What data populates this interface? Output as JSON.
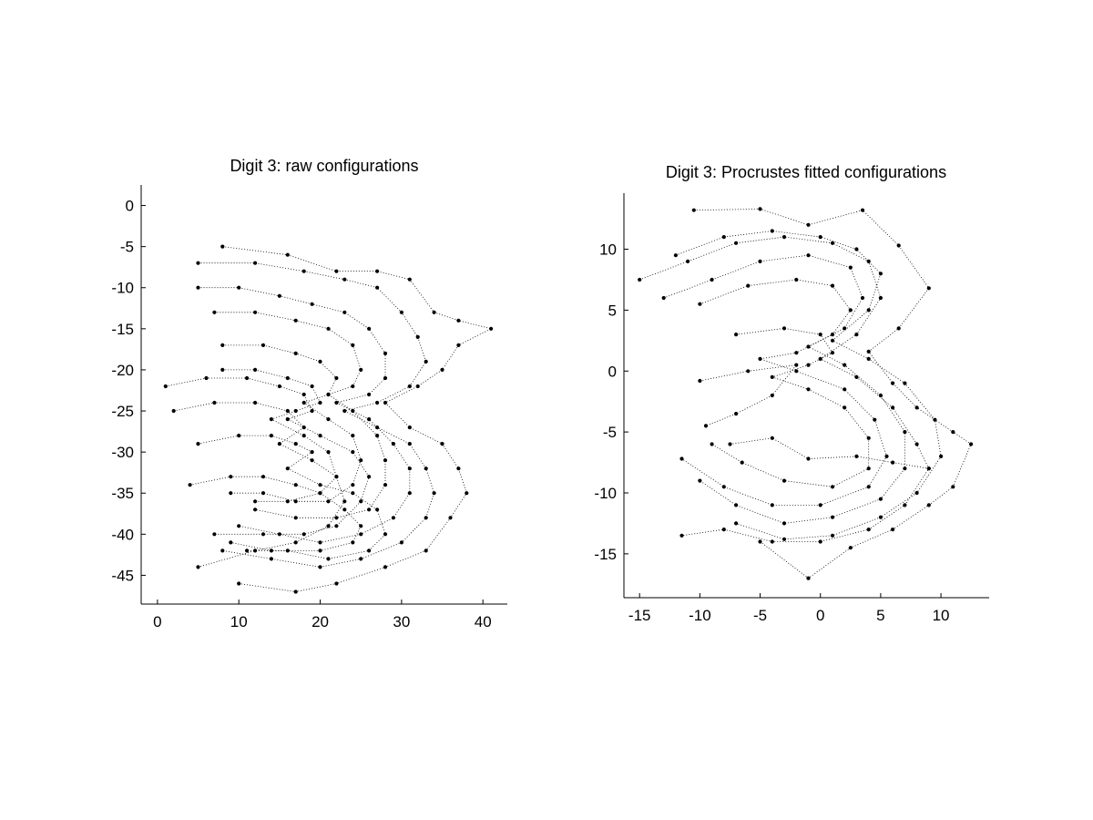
{
  "chart_data": [
    {
      "type": "scatter",
      "title": "Digit 3: raw configurations",
      "xlabel": "",
      "ylabel": "",
      "xlim": [
        -2,
        43
      ],
      "ylim": [
        -48.5,
        2.5
      ],
      "xticks": [
        0,
        10,
        20,
        30,
        40
      ],
      "yticks": [
        0,
        -5,
        -10,
        -15,
        -20,
        -25,
        -30,
        -35,
        -40,
        -45
      ],
      "grid": false,
      "marker": "dot",
      "connections": "dotted lines join corresponding landmarks",
      "series": [
        {
          "values": [
            [
              8,
              -5
            ],
            [
              16,
              -6
            ],
            [
              22,
              -8
            ],
            [
              27,
              -8
            ],
            [
              31,
              -9
            ],
            [
              34,
              -13
            ],
            [
              37,
              -14
            ],
            [
              41,
              -15
            ],
            [
              37,
              -17
            ],
            [
              35,
              -20
            ],
            [
              32,
              -22
            ],
            [
              28,
              -24
            ],
            [
              31,
              -27
            ],
            [
              35,
              -29
            ],
            [
              37,
              -32
            ],
            [
              38,
              -35
            ],
            [
              36,
              -38
            ],
            [
              33,
              -42
            ],
            [
              28,
              -44
            ],
            [
              22,
              -46
            ],
            [
              17,
              -47
            ],
            [
              10,
              -46
            ]
          ]
        },
        {
          "values": [
            [
              5,
              -7
            ],
            [
              12,
              -7
            ],
            [
              18,
              -8
            ],
            [
              23,
              -9
            ],
            [
              27,
              -10
            ],
            [
              30,
              -13
            ],
            [
              32,
              -16
            ],
            [
              33,
              -19
            ],
            [
              31,
              -22
            ],
            [
              27,
              -24
            ],
            [
              23,
              -25
            ],
            [
              27,
              -27
            ],
            [
              31,
              -29
            ],
            [
              33,
              -32
            ],
            [
              34,
              -35
            ],
            [
              33,
              -38
            ],
            [
              30,
              -41
            ],
            [
              25,
              -43
            ],
            [
              20,
              -44
            ],
            [
              14,
              -43
            ],
            [
              8,
              -42
            ]
          ]
        },
        {
          "values": [
            [
              5,
              -10
            ],
            [
              10,
              -10
            ],
            [
              15,
              -11
            ],
            [
              19,
              -12
            ],
            [
              23,
              -13
            ],
            [
              26,
              -15
            ],
            [
              28,
              -18
            ],
            [
              28,
              -21
            ],
            [
              26,
              -23
            ],
            [
              22,
              -24
            ],
            [
              26,
              -26
            ],
            [
              29,
              -29
            ],
            [
              31,
              -32
            ],
            [
              31,
              -35
            ],
            [
              29,
              -38
            ],
            [
              25,
              -40
            ],
            [
              20,
              -41
            ],
            [
              15,
              -40
            ],
            [
              10,
              -39
            ]
          ]
        },
        {
          "values": [
            [
              7,
              -13
            ],
            [
              12,
              -13
            ],
            [
              17,
              -14
            ],
            [
              21,
              -15
            ],
            [
              24,
              -17
            ],
            [
              25,
              -20
            ],
            [
              24,
              -22
            ],
            [
              21,
              -23
            ],
            [
              24,
              -25
            ],
            [
              27,
              -28
            ],
            [
              28,
              -31
            ],
            [
              28,
              -34
            ],
            [
              26,
              -37
            ],
            [
              22,
              -38
            ],
            [
              17,
              -38
            ],
            [
              12,
              -37
            ]
          ]
        },
        {
          "values": [
            [
              8,
              -17
            ],
            [
              13,
              -17
            ],
            [
              17,
              -18
            ],
            [
              20,
              -19
            ],
            [
              22,
              -21
            ],
            [
              21,
              -23
            ],
            [
              18,
              -24
            ],
            [
              21,
              -26
            ],
            [
              24,
              -28
            ],
            [
              25,
              -31
            ],
            [
              24,
              -34
            ],
            [
              21,
              -36
            ],
            [
              17,
              -36
            ],
            [
              13,
              -35
            ],
            [
              9,
              -35
            ]
          ]
        },
        {
          "values": [
            [
              8,
              -20
            ],
            [
              12,
              -20
            ],
            [
              16,
              -21
            ],
            [
              19,
              -22
            ],
            [
              20,
              -24
            ],
            [
              17,
              -25
            ],
            [
              14,
              -26
            ],
            [
              18,
              -28
            ],
            [
              21,
              -30
            ],
            [
              22,
              -33
            ],
            [
              20,
              -35
            ],
            [
              16,
              -36
            ],
            [
              12,
              -36
            ]
          ]
        },
        {
          "values": [
            [
              1,
              -22
            ],
            [
              6,
              -21
            ],
            [
              11,
              -21
            ],
            [
              15,
              -22
            ],
            [
              18,
              -23
            ],
            [
              19,
              -25
            ],
            [
              16,
              -26
            ],
            [
              20,
              -28
            ],
            [
              24,
              -30
            ],
            [
              26,
              -33
            ],
            [
              25,
              -36
            ],
            [
              22,
              -39
            ],
            [
              18,
              -40
            ],
            [
              13,
              -40
            ],
            [
              7,
              -40
            ]
          ]
        },
        {
          "values": [
            [
              2,
              -25
            ],
            [
              7,
              -24
            ],
            [
              12,
              -24
            ],
            [
              16,
              -25
            ],
            [
              18,
              -27
            ],
            [
              15,
              -29
            ],
            [
              19,
              -31
            ],
            [
              22,
              -33
            ],
            [
              23,
              -36
            ],
            [
              21,
              -39
            ],
            [
              17,
              -41
            ],
            [
              12,
              -42
            ],
            [
              5,
              -44
            ]
          ]
        },
        {
          "values": [
            [
              5,
              -29
            ],
            [
              10,
              -28
            ],
            [
              14,
              -28
            ],
            [
              17,
              -29
            ],
            [
              19,
              -30
            ],
            [
              16,
              -32
            ],
            [
              20,
              -34
            ],
            [
              24,
              -35
            ],
            [
              27,
              -37
            ],
            [
              28,
              -40
            ],
            [
              26,
              -42
            ],
            [
              21,
              -43
            ],
            [
              16,
              -42
            ],
            [
              11,
              -42
            ]
          ]
        },
        {
          "values": [
            [
              4,
              -34
            ],
            [
              9,
              -33
            ],
            [
              13,
              -33
            ],
            [
              17,
              -34
            ],
            [
              20,
              -35
            ],
            [
              23,
              -37
            ],
            [
              25,
              -39
            ],
            [
              24,
              -41
            ],
            [
              20,
              -42
            ],
            [
              14,
              -42
            ],
            [
              9,
              -41
            ]
          ]
        }
      ]
    },
    {
      "type": "scatter",
      "title": "Digit 3: Procrustes fitted configurations",
      "xlabel": "",
      "ylabel": "",
      "xlim": [
        -16.3,
        14
      ],
      "ylim": [
        -18.6,
        14.6
      ],
      "xticks": [
        -15,
        -10,
        -5,
        0,
        5,
        10
      ],
      "yticks": [
        10,
        5,
        0,
        -5,
        -10,
        -15
      ],
      "grid": false,
      "marker": "dot",
      "connections": "dotted lines join corresponding landmarks",
      "series": [
        {
          "values": [
            [
              -10.5,
              13.2
            ],
            [
              -5,
              13.3
            ],
            [
              -1,
              12
            ],
            [
              3.5,
              13.2
            ],
            [
              6.5,
              10.3
            ],
            [
              9,
              6.8
            ],
            [
              6.5,
              3.5
            ],
            [
              4,
              1.6
            ],
            [
              6,
              -1
            ],
            [
              8,
              -3
            ],
            [
              11,
              -5
            ],
            [
              12.5,
              -6
            ],
            [
              11,
              -9.5
            ],
            [
              9,
              -11
            ],
            [
              6,
              -13
            ],
            [
              2.5,
              -14.5
            ],
            [
              -1,
              -17
            ],
            [
              -5,
              -14
            ]
          ]
        },
        {
          "values": [
            [
              -15,
              7.5
            ],
            [
              -11,
              9
            ],
            [
              -7,
              10.5
            ],
            [
              -3,
              11
            ],
            [
              1,
              10.5
            ],
            [
              4,
              9
            ],
            [
              5,
              6
            ],
            [
              3,
              3
            ],
            [
              0,
              1
            ],
            [
              3,
              -0.5
            ],
            [
              6,
              -3
            ],
            [
              8,
              -6
            ],
            [
              9,
              -8
            ],
            [
              7,
              -11
            ],
            [
              4,
              -13
            ],
            [
              0,
              -14
            ],
            [
              -4,
              -14
            ],
            [
              -8,
              -13
            ],
            [
              -11.5,
              -13.5
            ]
          ]
        },
        {
          "values": [
            [
              -13,
              6
            ],
            [
              -9,
              7.5
            ],
            [
              -5,
              9
            ],
            [
              -1,
              9.5
            ],
            [
              2.5,
              8.5
            ],
            [
              3.5,
              6
            ],
            [
              2,
              3.5
            ],
            [
              -1,
              2
            ],
            [
              2,
              0.5
            ],
            [
              5,
              -2
            ],
            [
              7,
              -5
            ],
            [
              7,
              -8
            ],
            [
              5,
              -10.5
            ],
            [
              1,
              -12
            ],
            [
              -3,
              -12.5
            ],
            [
              -7,
              -11
            ],
            [
              -10,
              -9
            ]
          ]
        },
        {
          "values": [
            [
              -10,
              5.5
            ],
            [
              -6,
              7
            ],
            [
              -2,
              7.5
            ],
            [
              1,
              7
            ],
            [
              2.5,
              5
            ],
            [
              1,
              3
            ],
            [
              -2,
              1.5
            ],
            [
              -5,
              1
            ],
            [
              -2,
              0
            ],
            [
              2,
              -1.5
            ],
            [
              4.5,
              -4
            ],
            [
              5.5,
              -7
            ],
            [
              4,
              -9.5
            ],
            [
              0,
              -11
            ],
            [
              -4,
              -11
            ],
            [
              -8,
              -9.5
            ],
            [
              -11.5,
              -7.2
            ]
          ]
        },
        {
          "values": [
            [
              -7,
              3
            ],
            [
              -3,
              3.5
            ],
            [
              0,
              3
            ],
            [
              1,
              1.5
            ],
            [
              -1,
              0.5
            ],
            [
              -4,
              -0.5
            ],
            [
              -1,
              -1.5
            ],
            [
              2,
              -3
            ],
            [
              4,
              -5.5
            ],
            [
              4,
              -8
            ],
            [
              1,
              -9.5
            ],
            [
              -3,
              -9
            ],
            [
              -6.5,
              -7.5
            ],
            [
              -9,
              -6
            ]
          ]
        },
        {
          "values": [
            [
              -10,
              -0.8
            ],
            [
              -6,
              0
            ],
            [
              -2,
              0.5
            ],
            [
              -4,
              -2
            ],
            [
              -7,
              -3.5
            ],
            [
              -9.5,
              -4.5
            ]
          ]
        },
        {
          "values": [
            [
              -7.5,
              -6
            ],
            [
              -4,
              -5.5
            ],
            [
              -1,
              -7.2
            ],
            [
              3,
              -7
            ],
            [
              6,
              -7.5
            ],
            [
              9,
              -8
            ]
          ]
        },
        {
          "values": [
            [
              -12,
              9.5
            ],
            [
              -8,
              11
            ],
            [
              -4,
              11.5
            ],
            [
              0,
              11
            ],
            [
              3,
              10
            ],
            [
              5,
              8
            ],
            [
              4,
              5
            ],
            [
              1,
              2.5
            ],
            [
              4,
              1
            ],
            [
              7,
              -1
            ],
            [
              9.5,
              -4
            ],
            [
              10,
              -7
            ],
            [
              8,
              -10
            ],
            [
              5,
              -12
            ],
            [
              1,
              -13.5
            ],
            [
              -3,
              -13.8
            ],
            [
              -7,
              -12.5
            ]
          ]
        }
      ]
    }
  ]
}
